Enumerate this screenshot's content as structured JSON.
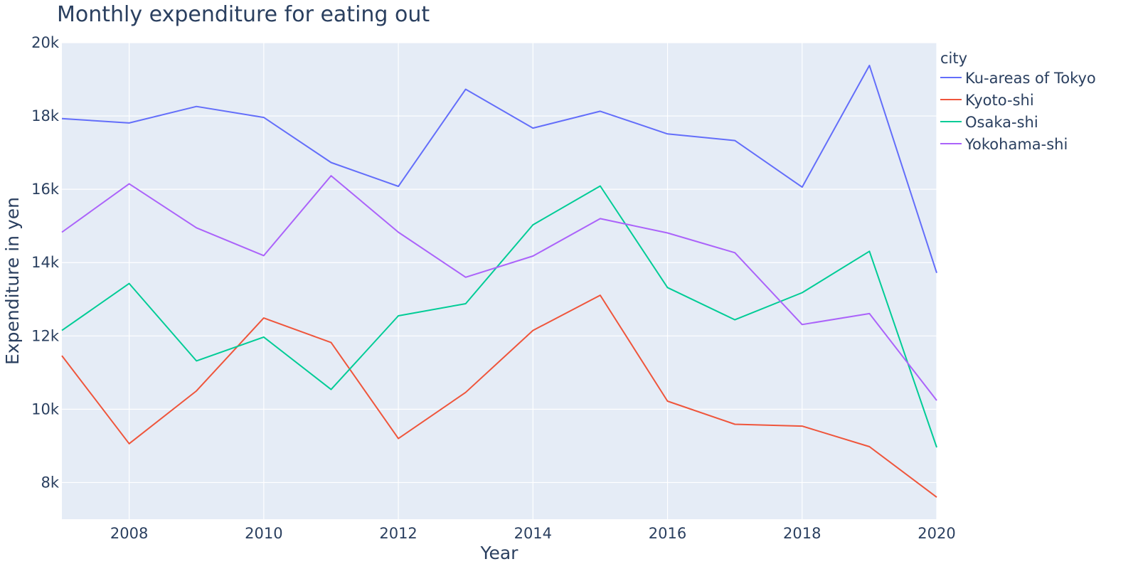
{
  "chart_data": {
    "type": "line",
    "title": "Monthly expenditure for eating out",
    "xlabel": "Year",
    "ylabel": "Expenditure in yen",
    "legend_title": "city",
    "legend_position": "top-right",
    "grid": true,
    "xlim": [
      2007,
      2020
    ],
    "ylim": [
      7000,
      20000
    ],
    "x_ticks": [
      2008,
      2010,
      2012,
      2014,
      2016,
      2018,
      2020
    ],
    "y_ticks": [
      8000,
      10000,
      12000,
      14000,
      16000,
      18000,
      20000
    ],
    "y_tick_labels": [
      "8k",
      "10k",
      "12k",
      "14k",
      "16k",
      "18k",
      "20k"
    ],
    "x": [
      2007,
      2008,
      2009,
      2010,
      2011,
      2012,
      2013,
      2014,
      2015,
      2016,
      2017,
      2018,
      2019,
      2020
    ],
    "series": [
      {
        "name": "Ku-areas of Tokyo",
        "color": "#636efa",
        "values": [
          17930,
          17810,
          18260,
          17960,
          16730,
          16080,
          18730,
          17670,
          18130,
          17510,
          17330,
          16060,
          19380,
          13720
        ]
      },
      {
        "name": "Kyoto-shi",
        "color": "#EF553B",
        "values": [
          11460,
          9060,
          10500,
          12490,
          11820,
          9200,
          10460,
          12150,
          13110,
          10220,
          9590,
          9540,
          8980,
          7600
        ]
      },
      {
        "name": "Osaka-shi",
        "color": "#00cc96",
        "values": [
          12150,
          13430,
          11320,
          11970,
          10540,
          12550,
          12880,
          15030,
          16090,
          13320,
          12440,
          13180,
          14310,
          8960
        ]
      },
      {
        "name": "Yokohama-shi",
        "color": "#ab63fa",
        "values": [
          14830,
          16150,
          14950,
          14190,
          16370,
          14830,
          13600,
          14180,
          15200,
          14810,
          14270,
          12310,
          12610,
          10240
        ]
      }
    ]
  }
}
